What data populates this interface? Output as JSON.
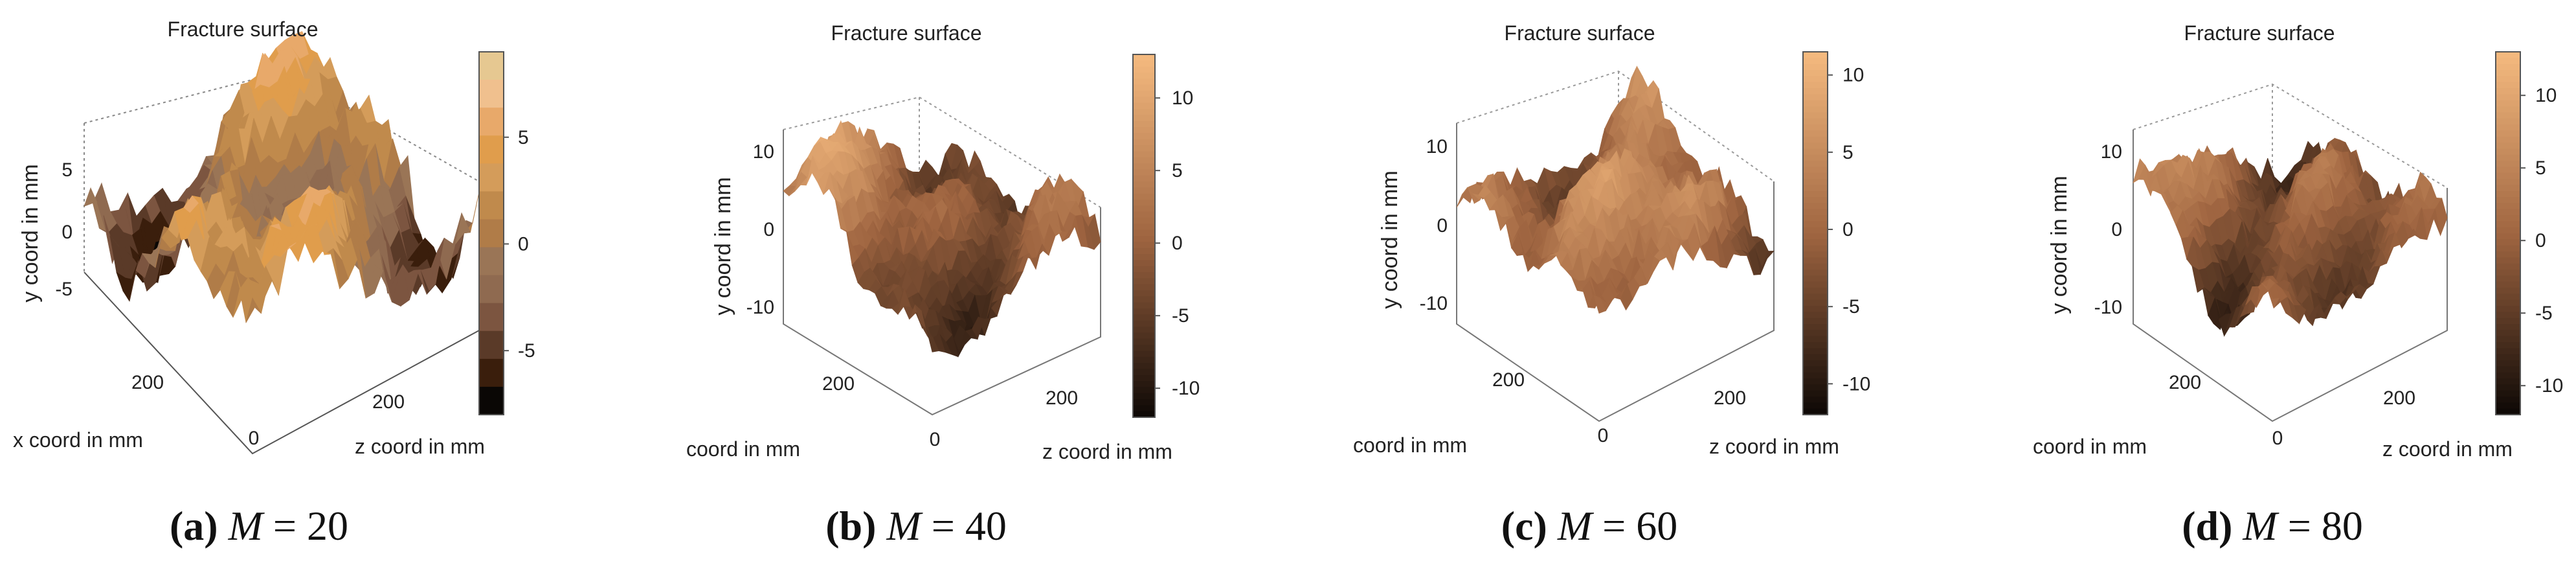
{
  "chart_data": [
    {
      "type": "surface3d",
      "panel": "a",
      "title": "Fracture surface",
      "ylabel": "y coord in mm",
      "xlabel": "x coord in mm",
      "zlabel": "z coord in mm",
      "y_ticks": [
        "5",
        "0",
        "-5"
      ],
      "x_ticks": [
        "200"
      ],
      "z_ticks": [
        "0",
        "200"
      ],
      "colorbar": {
        "ticks": [
          "5",
          "0",
          "-5"
        ],
        "min": -8,
        "max": 9,
        "banded": true
      },
      "ylim": [
        -8,
        9
      ],
      "caption": {
        "label": "(a)",
        "param": "M",
        "eq": "= 20"
      }
    },
    {
      "type": "surface3d",
      "panel": "b",
      "title": "Fracture surface",
      "ylabel": "y coord in mm",
      "xlabel": "coord in mm",
      "zlabel": "z coord in mm",
      "y_ticks": [
        "10",
        "0",
        "-10"
      ],
      "x_ticks": [
        "200"
      ],
      "z_ticks": [
        "0",
        "200"
      ],
      "colorbar": {
        "ticks": [
          "10",
          "5",
          "0",
          "-5",
          "-10"
        ],
        "min": -12,
        "max": 13,
        "banded": false
      },
      "ylim": [
        -12,
        13
      ],
      "caption": {
        "label": "(b)",
        "param": "M",
        "eq": "= 40"
      }
    },
    {
      "type": "surface3d",
      "panel": "c",
      "title": "Fracture surface",
      "ylabel": "y coord in mm",
      "xlabel": "coord in mm",
      "zlabel": "z coord in mm",
      "y_ticks": [
        "10",
        "0",
        "-10"
      ],
      "x_ticks": [
        "200"
      ],
      "z_ticks": [
        "0",
        "200"
      ],
      "colorbar": {
        "ticks": [
          "10",
          "5",
          "0",
          "-5",
          "-10"
        ],
        "min": -12,
        "max": 11.5,
        "banded": false
      },
      "ylim": [
        -12,
        11.5
      ],
      "caption": {
        "label": "(c)",
        "param": "M",
        "eq": "= 60"
      }
    },
    {
      "type": "surface3d",
      "panel": "d",
      "title": "Fracture surface",
      "ylabel": "y coord in mm",
      "xlabel": "coord in mm",
      "zlabel": "z coord in mm",
      "y_ticks": [
        "10",
        "0",
        "-10"
      ],
      "x_ticks": [
        "200"
      ],
      "z_ticks": [
        "0",
        "200"
      ],
      "colorbar": {
        "ticks": [
          "10",
          "5",
          "0",
          "-5",
          "-10"
        ],
        "min": -12,
        "max": 13,
        "banded": false
      },
      "ylim": [
        -12,
        13
      ],
      "caption": {
        "label": "(d)",
        "param": "M",
        "eq": "= 80"
      }
    }
  ],
  "colors": {
    "copper_low": "#0a0604",
    "copper_mid": "#9e6440",
    "copper_high": "#f4b97e",
    "band_top": "#e6c891",
    "axis": "#777777",
    "text": "#222222"
  }
}
